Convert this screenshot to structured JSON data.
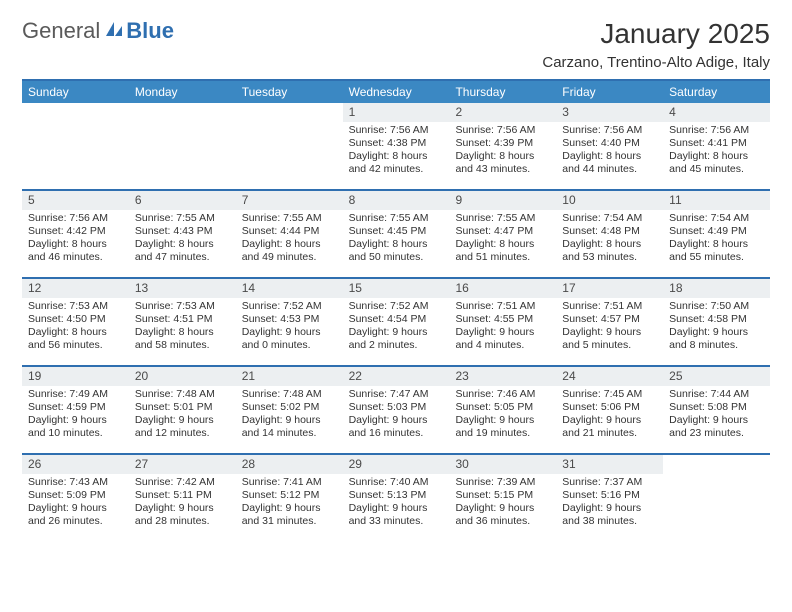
{
  "logo": {
    "text_general": "General",
    "text_blue": "Blue"
  },
  "title": "January 2025",
  "location": "Carzano, Trentino-Alto Adige, Italy",
  "colors": {
    "header_bg": "#3b88c3",
    "header_border": "#2f6fb0",
    "daynum_bg": "#eceff1",
    "row_divider": "#2f6fb0",
    "text": "#333333",
    "logo_gray": "#5a5a5a",
    "logo_blue": "#2f6fb0",
    "background": "#ffffff"
  },
  "typography": {
    "title_fontsize": 28,
    "location_fontsize": 15,
    "dayhead_fontsize": 12,
    "daynum_fontsize": 12,
    "body_fontsize": 10.5
  },
  "day_headers": [
    "Sunday",
    "Monday",
    "Tuesday",
    "Wednesday",
    "Thursday",
    "Friday",
    "Saturday"
  ],
  "weeks": [
    [
      {
        "empty": true
      },
      {
        "empty": true
      },
      {
        "empty": true
      },
      {
        "day": "1",
        "sunrise": "7:56 AM",
        "sunset": "4:38 PM",
        "daylight_h": "8",
        "daylight_m": "42"
      },
      {
        "day": "2",
        "sunrise": "7:56 AM",
        "sunset": "4:39 PM",
        "daylight_h": "8",
        "daylight_m": "43"
      },
      {
        "day": "3",
        "sunrise": "7:56 AM",
        "sunset": "4:40 PM",
        "daylight_h": "8",
        "daylight_m": "44"
      },
      {
        "day": "4",
        "sunrise": "7:56 AM",
        "sunset": "4:41 PM",
        "daylight_h": "8",
        "daylight_m": "45"
      }
    ],
    [
      {
        "day": "5",
        "sunrise": "7:56 AM",
        "sunset": "4:42 PM",
        "daylight_h": "8",
        "daylight_m": "46"
      },
      {
        "day": "6",
        "sunrise": "7:55 AM",
        "sunset": "4:43 PM",
        "daylight_h": "8",
        "daylight_m": "47"
      },
      {
        "day": "7",
        "sunrise": "7:55 AM",
        "sunset": "4:44 PM",
        "daylight_h": "8",
        "daylight_m": "49"
      },
      {
        "day": "8",
        "sunrise": "7:55 AM",
        "sunset": "4:45 PM",
        "daylight_h": "8",
        "daylight_m": "50"
      },
      {
        "day": "9",
        "sunrise": "7:55 AM",
        "sunset": "4:47 PM",
        "daylight_h": "8",
        "daylight_m": "51"
      },
      {
        "day": "10",
        "sunrise": "7:54 AM",
        "sunset": "4:48 PM",
        "daylight_h": "8",
        "daylight_m": "53"
      },
      {
        "day": "11",
        "sunrise": "7:54 AM",
        "sunset": "4:49 PM",
        "daylight_h": "8",
        "daylight_m": "55"
      }
    ],
    [
      {
        "day": "12",
        "sunrise": "7:53 AM",
        "sunset": "4:50 PM",
        "daylight_h": "8",
        "daylight_m": "56"
      },
      {
        "day": "13",
        "sunrise": "7:53 AM",
        "sunset": "4:51 PM",
        "daylight_h": "8",
        "daylight_m": "58"
      },
      {
        "day": "14",
        "sunrise": "7:52 AM",
        "sunset": "4:53 PM",
        "daylight_h": "9",
        "daylight_m": "0"
      },
      {
        "day": "15",
        "sunrise": "7:52 AM",
        "sunset": "4:54 PM",
        "daylight_h": "9",
        "daylight_m": "2"
      },
      {
        "day": "16",
        "sunrise": "7:51 AM",
        "sunset": "4:55 PM",
        "daylight_h": "9",
        "daylight_m": "4"
      },
      {
        "day": "17",
        "sunrise": "7:51 AM",
        "sunset": "4:57 PM",
        "daylight_h": "9",
        "daylight_m": "5"
      },
      {
        "day": "18",
        "sunrise": "7:50 AM",
        "sunset": "4:58 PM",
        "daylight_h": "9",
        "daylight_m": "8"
      }
    ],
    [
      {
        "day": "19",
        "sunrise": "7:49 AM",
        "sunset": "4:59 PM",
        "daylight_h": "9",
        "daylight_m": "10"
      },
      {
        "day": "20",
        "sunrise": "7:48 AM",
        "sunset": "5:01 PM",
        "daylight_h": "9",
        "daylight_m": "12"
      },
      {
        "day": "21",
        "sunrise": "7:48 AM",
        "sunset": "5:02 PM",
        "daylight_h": "9",
        "daylight_m": "14"
      },
      {
        "day": "22",
        "sunrise": "7:47 AM",
        "sunset": "5:03 PM",
        "daylight_h": "9",
        "daylight_m": "16"
      },
      {
        "day": "23",
        "sunrise": "7:46 AM",
        "sunset": "5:05 PM",
        "daylight_h": "9",
        "daylight_m": "19"
      },
      {
        "day": "24",
        "sunrise": "7:45 AM",
        "sunset": "5:06 PM",
        "daylight_h": "9",
        "daylight_m": "21"
      },
      {
        "day": "25",
        "sunrise": "7:44 AM",
        "sunset": "5:08 PM",
        "daylight_h": "9",
        "daylight_m": "23"
      }
    ],
    [
      {
        "day": "26",
        "sunrise": "7:43 AM",
        "sunset": "5:09 PM",
        "daylight_h": "9",
        "daylight_m": "26"
      },
      {
        "day": "27",
        "sunrise": "7:42 AM",
        "sunset": "5:11 PM",
        "daylight_h": "9",
        "daylight_m": "28"
      },
      {
        "day": "28",
        "sunrise": "7:41 AM",
        "sunset": "5:12 PM",
        "daylight_h": "9",
        "daylight_m": "31"
      },
      {
        "day": "29",
        "sunrise": "7:40 AM",
        "sunset": "5:13 PM",
        "daylight_h": "9",
        "daylight_m": "33"
      },
      {
        "day": "30",
        "sunrise": "7:39 AM",
        "sunset": "5:15 PM",
        "daylight_h": "9",
        "daylight_m": "36"
      },
      {
        "day": "31",
        "sunrise": "7:37 AM",
        "sunset": "5:16 PM",
        "daylight_h": "9",
        "daylight_m": "38"
      },
      {
        "empty": true
      }
    ]
  ]
}
